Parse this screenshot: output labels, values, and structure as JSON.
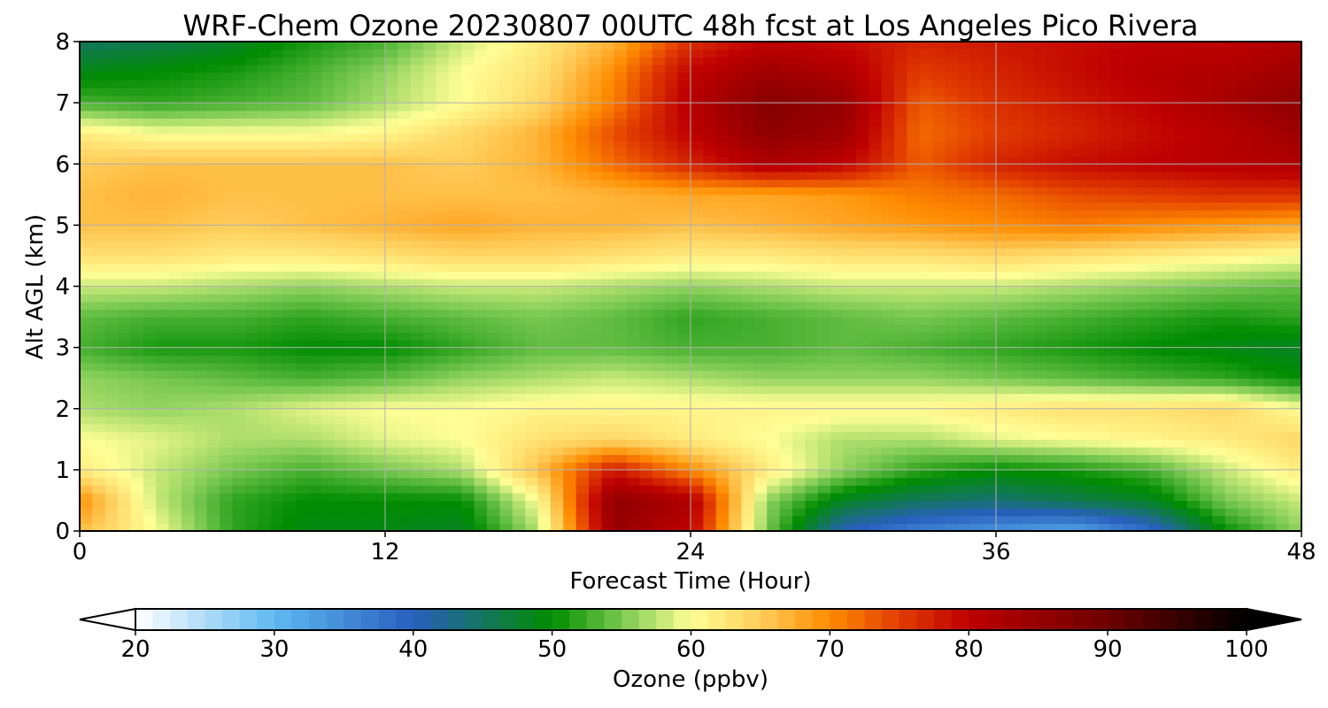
{
  "chart_data": {
    "type": "heatmap",
    "title": "WRF-Chem Ozone  20230807 00UTC 48h fcst at Los Angeles Pico Rivera",
    "xlabel": "Forecast Time (Hour)",
    "ylabel": "Alt AGL (km)",
    "xlim": [
      0,
      48
    ],
    "ylim": [
      0,
      8
    ],
    "xticks": [
      0,
      12,
      24,
      36,
      48
    ],
    "yticks": [
      0,
      1,
      2,
      3,
      4,
      5,
      6,
      7,
      8
    ],
    "grid": true,
    "colorbar": {
      "label": "Ozone  (ppbv)",
      "min": 20,
      "max": 100,
      "ticks": [
        20,
        30,
        40,
        50,
        60,
        70,
        80,
        90,
        100
      ],
      "extend": "both",
      "orientation": "horizontal"
    },
    "x_hours": [
      0,
      3,
      6,
      9,
      12,
      15,
      18,
      21,
      24,
      27,
      30,
      33,
      36,
      39,
      42,
      45,
      48
    ],
    "z_km": [
      0,
      0.5,
      1,
      1.5,
      2,
      2.5,
      3,
      3.5,
      4,
      4.5,
      5,
      5.5,
      6,
      6.5,
      7,
      7.5,
      8
    ],
    "ozone_ppbv": [
      [
        66,
        60,
        52,
        49,
        49,
        48,
        57,
        85,
        80,
        55,
        40,
        36,
        34,
        32,
        38,
        50,
        56
      ],
      [
        70,
        58,
        52,
        50,
        50,
        50,
        60,
        86,
        82,
        56,
        48,
        45,
        44,
        46,
        48,
        55,
        58
      ],
      [
        62,
        58,
        55,
        53,
        55,
        57,
        66,
        78,
        70,
        62,
        56,
        52,
        50,
        51,
        53,
        58,
        62
      ],
      [
        60,
        59,
        57,
        57,
        59,
        60,
        63,
        64,
        62,
        60,
        57,
        57,
        59,
        60,
        61,
        62,
        64
      ],
      [
        57,
        56,
        57,
        59,
        60,
        60,
        61,
        61,
        61,
        61,
        61,
        61,
        62,
        63,
        63,
        64,
        60
      ],
      [
        56,
        55,
        54,
        53,
        54,
        56,
        57,
        58,
        57,
        56,
        56,
        56,
        55,
        54,
        53,
        52,
        50
      ],
      [
        53,
        51,
        51,
        50,
        50,
        52,
        54,
        54,
        53,
        53,
        54,
        53,
        52,
        51,
        50,
        49,
        48
      ],
      [
        54,
        53,
        53,
        52,
        53,
        54,
        55,
        54,
        52,
        53,
        54,
        55,
        54,
        53,
        52,
        51,
        52
      ],
      [
        58,
        58,
        57,
        56,
        57,
        58,
        58,
        57,
        56,
        57,
        58,
        58,
        58,
        57,
        56,
        55,
        54
      ],
      [
        63,
        63,
        62,
        62,
        63,
        64,
        64,
        63,
        62,
        62,
        63,
        63,
        64,
        63,
        62,
        61,
        60
      ],
      [
        66,
        66,
        65,
        66,
        67,
        68,
        67,
        67,
        66,
        67,
        68,
        69,
        70,
        71,
        70,
        69,
        68
      ],
      [
        66,
        67,
        66,
        66,
        66,
        66,
        66,
        67,
        68,
        68,
        69,
        71,
        72,
        74,
        75,
        76,
        76
      ],
      [
        65,
        66,
        66,
        66,
        66,
        65,
        67,
        72,
        77,
        82,
        80,
        73,
        77,
        79,
        80,
        81,
        82
      ],
      [
        62,
        60,
        60,
        60,
        61,
        64,
        67,
        74,
        80,
        86,
        84,
        72,
        75,
        77,
        79,
        81,
        84
      ],
      [
        53,
        52,
        53,
        54,
        57,
        60,
        64,
        71,
        81,
        87,
        85,
        73,
        76,
        78,
        80,
        83,
        86
      ],
      [
        49,
        50,
        51,
        53,
        56,
        60,
        63,
        70,
        80,
        84,
        82,
        75,
        77,
        79,
        81,
        82,
        84
      ],
      [
        45,
        46,
        48,
        51,
        53,
        58,
        62,
        67,
        76,
        80,
        79,
        77,
        78,
        79,
        80,
        80,
        82
      ]
    ]
  }
}
